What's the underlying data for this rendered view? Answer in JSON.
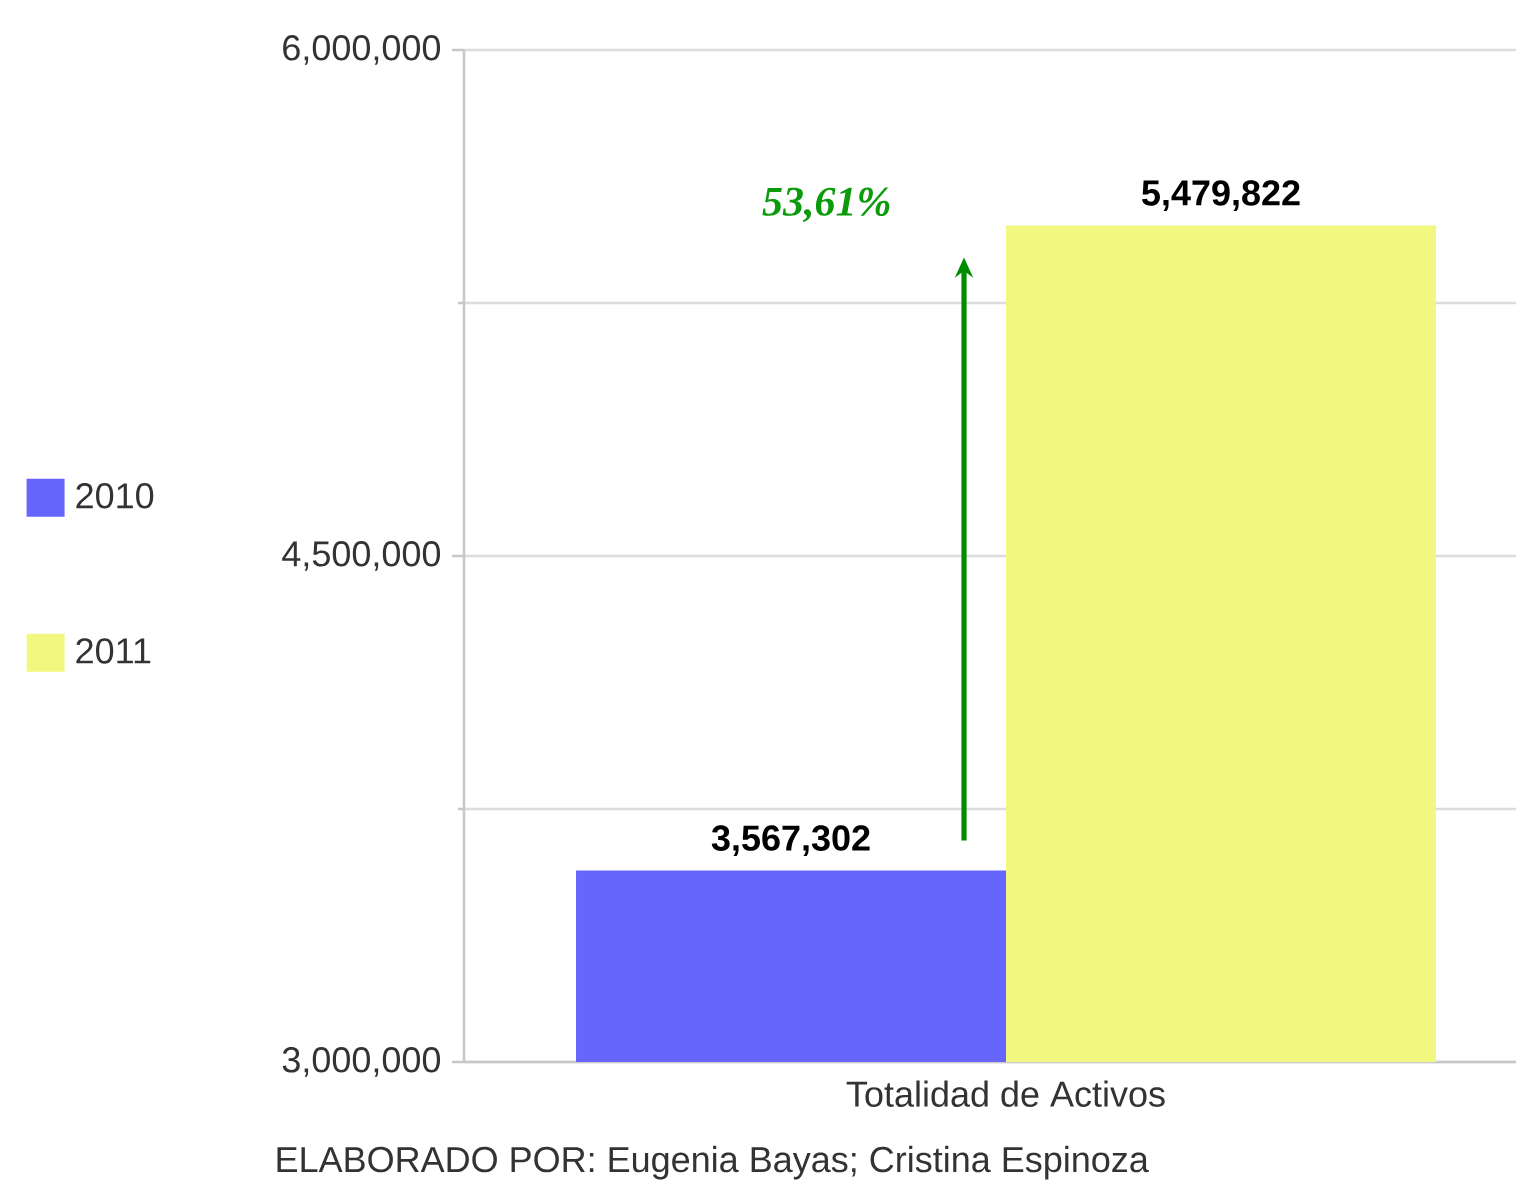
{
  "chart_data": {
    "type": "bar",
    "categories": [
      "Totalidad de Activos"
    ],
    "series": [
      {
        "name": "2010",
        "color": "#6666ff",
        "values": [
          3567302
        ],
        "value_labels": [
          "3,567,302"
        ]
      },
      {
        "name": "2011",
        "color": "#f2f780",
        "values": [
          5479822
        ],
        "value_labels": [
          "5,479,822"
        ]
      }
    ],
    "ylim": [
      3000000,
      6000000
    ],
    "yticks": [
      {
        "value": 3000000,
        "label": "3,000,000"
      },
      {
        "value": 3750000,
        "label": null
      },
      {
        "value": 4500000,
        "label": "4,500,000"
      },
      {
        "value": 5250000,
        "label": null
      },
      {
        "value": 6000000,
        "label": "6,000,000"
      }
    ],
    "grid": "y",
    "legend": "left",
    "annotations": [
      "53,61%",
      "ELABORADO POR: Eugenia Bayas; Cristina Espinoza"
    ]
  }
}
